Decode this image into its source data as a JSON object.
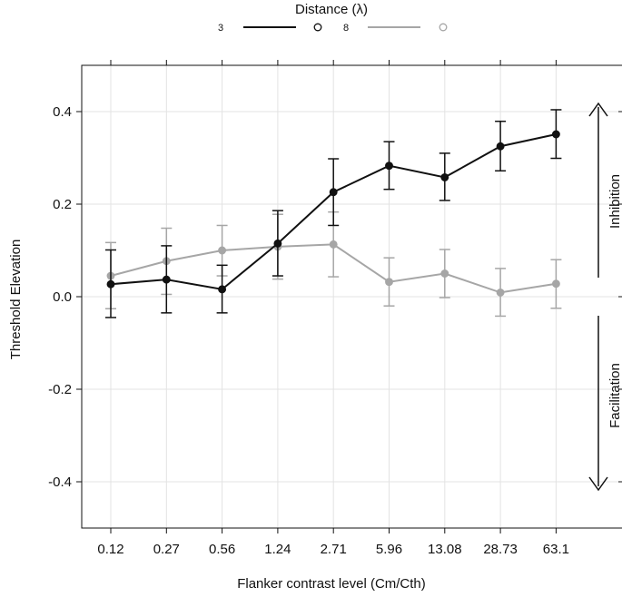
{
  "chart_data": {
    "type": "line",
    "title": "",
    "xlabel": "Flanker contrast level (Cm/Cth)",
    "ylabel": "Threshold Elevation",
    "categories": [
      "0.12",
      "0.27",
      "0.56",
      "1.24",
      "2.71",
      "5.96",
      "13.08",
      "28.73",
      "63.1"
    ],
    "ylim": [
      -0.5,
      0.5
    ],
    "yticks": [
      -0.4,
      -0.2,
      0.0,
      0.2,
      0.4
    ],
    "ytick_labels": [
      "-0.4",
      "-0.2",
      "0.0",
      "0.2",
      "0.4"
    ],
    "grid": true,
    "legend": {
      "title": "Distance (λ)",
      "position": "top"
    },
    "series": [
      {
        "name": "3",
        "color": "#111111",
        "values": [
          0.027,
          0.037,
          0.016,
          0.115,
          0.226,
          0.283,
          0.258,
          0.325,
          0.351
        ],
        "error_low": [
          -0.045,
          -0.035,
          -0.035,
          0.045,
          0.154,
          0.232,
          0.208,
          0.272,
          0.299
        ],
        "error_high": [
          0.101,
          0.11,
          0.068,
          0.186,
          0.298,
          0.335,
          0.31,
          0.379,
          0.404
        ]
      },
      {
        "name": "8",
        "color": "#a6a6a6",
        "values": [
          0.045,
          0.077,
          0.1,
          0.108,
          0.113,
          0.032,
          0.05,
          0.009,
          0.028
        ],
        "error_low": [
          -0.026,
          0.005,
          0.045,
          0.038,
          0.043,
          -0.02,
          -0.002,
          -0.042,
          -0.025
        ],
        "error_high": [
          0.117,
          0.148,
          0.154,
          0.178,
          0.183,
          0.084,
          0.102,
          0.061,
          0.08
        ]
      }
    ],
    "annotations": [
      {
        "text": "Inhibition",
        "direction": "up"
      },
      {
        "text": "Facilitation",
        "direction": "down"
      }
    ]
  }
}
